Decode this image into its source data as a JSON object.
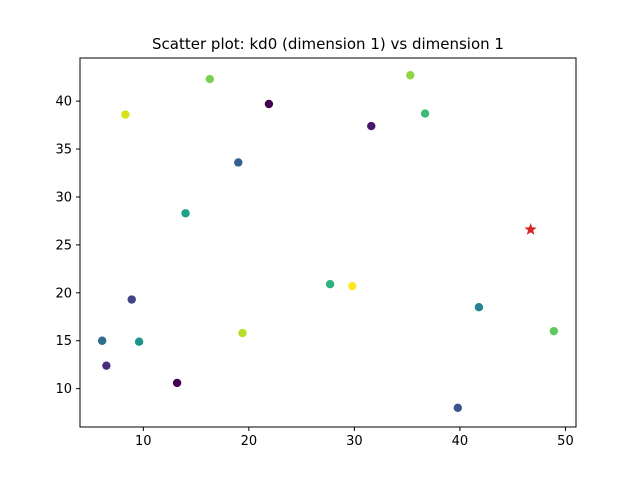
{
  "chart_data": {
    "type": "scatter",
    "title": "Scatter plot: kd0 (dimension 1) vs dimension 1",
    "xlabel": "",
    "ylabel": "",
    "xlim": [
      4,
      51
    ],
    "ylim": [
      6,
      44.5
    ],
    "x_ticks": [
      10,
      20,
      30,
      40,
      50
    ],
    "y_ticks": [
      10,
      15,
      20,
      25,
      30,
      35,
      40
    ],
    "x_tick_labels": [
      "10",
      "20",
      "30",
      "40",
      "50"
    ],
    "y_tick_labels": [
      "10",
      "15",
      "20",
      "25",
      "30",
      "35",
      "40"
    ],
    "grid": false,
    "legend": "none",
    "colormap": "viridis",
    "points": [
      {
        "x": 21.9,
        "y": 39.7,
        "color": "#440154"
      },
      {
        "x": 13.2,
        "y": 10.6,
        "color": "#440154"
      },
      {
        "x": 31.6,
        "y": 37.4,
        "color": "#46186e"
      },
      {
        "x": 6.5,
        "y": 12.4,
        "color": "#472d7b"
      },
      {
        "x": 8.9,
        "y": 19.3,
        "color": "#414487"
      },
      {
        "x": 39.8,
        "y": 8.0,
        "color": "#3b528b"
      },
      {
        "x": 19.0,
        "y": 33.6,
        "color": "#355f8d"
      },
      {
        "x": 6.1,
        "y": 15.0,
        "color": "#2e6e8e"
      },
      {
        "x": 41.8,
        "y": 18.5,
        "color": "#26828e"
      },
      {
        "x": 9.6,
        "y": 14.9,
        "color": "#20928c"
      },
      {
        "x": 14.0,
        "y": 28.3,
        "color": "#1fa088"
      },
      {
        "x": 27.7,
        "y": 20.9,
        "color": "#2db27d"
      },
      {
        "x": 36.7,
        "y": 38.7,
        "color": "#3bbb75"
      },
      {
        "x": 48.9,
        "y": 16.0,
        "color": "#5ec962"
      },
      {
        "x": 16.3,
        "y": 42.3,
        "color": "#7ad151"
      },
      {
        "x": 35.3,
        "y": 42.7,
        "color": "#8fd744"
      },
      {
        "x": 19.4,
        "y": 15.8,
        "color": "#b5de2b"
      },
      {
        "x": 8.3,
        "y": 38.6,
        "color": "#d8e219"
      },
      {
        "x": 29.8,
        "y": 20.7,
        "color": "#fde725"
      }
    ],
    "highlight": {
      "x": 46.7,
      "y": 26.6,
      "color": "#d62728",
      "marker": "star"
    }
  }
}
